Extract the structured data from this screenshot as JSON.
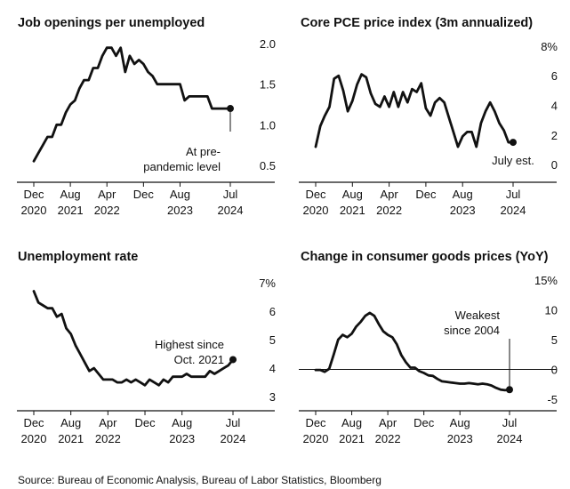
{
  "source": "Source: Bureau of Economic Analysis, Bureau of Labor Statistics, Bloomberg",
  "chart_data": [
    {
      "type": "line",
      "title": "Job openings per unemployed",
      "x_ticks": [
        {
          "top": "Dec",
          "bottom": "2020",
          "x": 0
        },
        {
          "top": "Aug",
          "bottom": "2021",
          "x": 8
        },
        {
          "top": "Apr",
          "bottom": "2022",
          "x": 16
        },
        {
          "top": "Dec",
          "bottom": "",
          "x": 24
        },
        {
          "top": "Aug",
          "bottom": "2023",
          "x": 32
        },
        {
          "top": "Jul",
          "bottom": "2024",
          "x": 43
        }
      ],
      "y_ticks": [
        "0.5",
        "1.0",
        "1.5",
        "2.0"
      ],
      "y_tick_values": [
        0.5,
        1.0,
        1.5,
        2.0
      ],
      "ylim": [
        0.4,
        2.1
      ],
      "x": [
        0,
        1,
        2,
        3,
        4,
        5,
        6,
        7,
        8,
        9,
        10,
        11,
        12,
        13,
        14,
        15,
        16,
        17,
        18,
        19,
        20,
        21,
        22,
        23,
        24,
        25,
        26,
        27,
        28,
        29,
        30,
        31,
        32,
        33,
        34,
        35,
        36,
        37,
        38,
        39,
        40,
        41,
        42,
        43
      ],
      "values": [
        0.55,
        0.65,
        0.75,
        0.85,
        0.85,
        1.0,
        1.0,
        1.15,
        1.25,
        1.3,
        1.45,
        1.55,
        1.55,
        1.7,
        1.7,
        1.85,
        1.95,
        1.95,
        1.85,
        1.95,
        1.65,
        1.85,
        1.75,
        1.8,
        1.75,
        1.65,
        1.6,
        1.5,
        1.5,
        1.5,
        1.5,
        1.5,
        1.5,
        1.3,
        1.35,
        1.35,
        1.35,
        1.35,
        1.35,
        1.2,
        1.2,
        1.2,
        1.2,
        1.2
      ],
      "annotation": {
        "lines": [
          "At pre-",
          "pandemic level"
        ],
        "x": 43,
        "y": 1.2
      }
    },
    {
      "type": "line",
      "title": "Core PCE price index (3m annualized)",
      "x_ticks": [
        {
          "top": "Dec",
          "bottom": "2020",
          "x": 0
        },
        {
          "top": "Aug",
          "bottom": "2021",
          "x": 8
        },
        {
          "top": "Apr",
          "bottom": "2022",
          "x": 16
        },
        {
          "top": "Dec",
          "bottom": "",
          "x": 24
        },
        {
          "top": "Aug",
          "bottom": "2023",
          "x": 32
        },
        {
          "top": "Jul",
          "bottom": "2024",
          "x": 43
        }
      ],
      "y_ticks": [
        "0",
        "2",
        "4",
        "6",
        "8%"
      ],
      "y_tick_values": [
        0,
        2,
        4,
        6,
        8
      ],
      "ylim": [
        -0.6,
        8.6
      ],
      "x": [
        0,
        1,
        2,
        3,
        4,
        5,
        6,
        7,
        8,
        9,
        10,
        11,
        12,
        13,
        14,
        15,
        16,
        17,
        18,
        19,
        20,
        21,
        22,
        23,
        24,
        25,
        26,
        27,
        28,
        29,
        30,
        31,
        32,
        33,
        34,
        35,
        36,
        37,
        38,
        39,
        40,
        41,
        42,
        43
      ],
      "values": [
        1.2,
        2.6,
        3.3,
        3.9,
        5.8,
        6.0,
        5.0,
        3.6,
        4.3,
        5.4,
        6.1,
        5.9,
        4.8,
        4.1,
        3.9,
        4.6,
        3.9,
        4.9,
        3.9,
        4.9,
        4.2,
        5.1,
        4.9,
        5.5,
        3.8,
        3.3,
        4.2,
        4.5,
        4.2,
        3.2,
        2.2,
        1.2,
        1.9,
        2.2,
        2.2,
        1.2,
        2.8,
        3.6,
        4.2,
        3.6,
        2.8,
        2.3,
        1.5,
        1.5
      ],
      "annotation": {
        "lines": [
          "July est."
        ],
        "x": 43,
        "y": 1.5
      }
    },
    {
      "type": "line",
      "title": "Unemployment rate",
      "x_ticks": [
        {
          "top": "Dec",
          "bottom": "2020",
          "x": 0
        },
        {
          "top": "Aug",
          "bottom": "2021",
          "x": 8
        },
        {
          "top": "Apr",
          "bottom": "2022",
          "x": 16
        },
        {
          "top": "Dec",
          "bottom": "",
          "x": 24
        },
        {
          "top": "Aug",
          "bottom": "2023",
          "x": 32
        },
        {
          "top": "Jul",
          "bottom": "2024",
          "x": 43
        }
      ],
      "y_ticks": [
        "3",
        "4",
        "5",
        "6",
        "7%"
      ],
      "y_tick_values": [
        3,
        4,
        5,
        6,
        7
      ],
      "ylim": [
        2.6,
        7.4
      ],
      "x": [
        0,
        1,
        2,
        3,
        4,
        5,
        6,
        7,
        8,
        9,
        10,
        11,
        12,
        13,
        14,
        15,
        16,
        17,
        18,
        19,
        20,
        21,
        22,
        23,
        24,
        25,
        26,
        27,
        28,
        29,
        30,
        31,
        32,
        33,
        34,
        35,
        36,
        37,
        38,
        39,
        40,
        41,
        42,
        43
      ],
      "values": [
        6.7,
        6.3,
        6.2,
        6.1,
        6.1,
        5.8,
        5.9,
        5.4,
        5.2,
        4.8,
        4.5,
        4.2,
        3.9,
        4.0,
        3.8,
        3.6,
        3.6,
        3.6,
        3.5,
        3.5,
        3.6,
        3.5,
        3.6,
        3.5,
        3.4,
        3.6,
        3.5,
        3.4,
        3.6,
        3.5,
        3.7,
        3.7,
        3.7,
        3.8,
        3.7,
        3.7,
        3.7,
        3.7,
        3.9,
        3.8,
        3.9,
        4.0,
        4.1,
        4.3
      ],
      "annotation": {
        "lines": [
          "Highest since",
          "Oct. 2021"
        ],
        "x": 43,
        "y": 4.3
      }
    },
    {
      "type": "line",
      "title": "Change in consumer goods prices (YoY)",
      "x_ticks": [
        {
          "top": "Dec",
          "bottom": "2020",
          "x": 0
        },
        {
          "top": "Aug",
          "bottom": "2021",
          "x": 8
        },
        {
          "top": "Apr",
          "bottom": "2022",
          "x": 16
        },
        {
          "top": "Dec",
          "bottom": "",
          "x": 24
        },
        {
          "top": "Aug",
          "bottom": "2023",
          "x": 32
        },
        {
          "top": "Jul",
          "bottom": "2024",
          "x": 43
        }
      ],
      "y_ticks": [
        "-5",
        "0",
        "5",
        "10",
        "15%"
      ],
      "y_tick_values": [
        -5,
        0,
        5,
        10,
        15
      ],
      "ylim": [
        -6.5,
        16.5
      ],
      "zero_line": 0,
      "x": [
        0,
        1,
        2,
        3,
        4,
        5,
        6,
        7,
        8,
        9,
        10,
        11,
        12,
        13,
        14,
        15,
        16,
        17,
        18,
        19,
        20,
        21,
        22,
        23,
        24,
        25,
        26,
        27,
        28,
        29,
        30,
        31,
        32,
        33,
        34,
        35,
        36,
        37,
        38,
        39,
        40,
        41,
        42,
        43
      ],
      "values": [
        -0.1,
        -0.1,
        -0.4,
        0.1,
        2.5,
        5.0,
        5.8,
        5.4,
        6.0,
        7.2,
        8.0,
        9.0,
        9.5,
        9.0,
        7.6,
        6.4,
        5.8,
        5.4,
        4.2,
        2.4,
        1.2,
        0.3,
        0.3,
        -0.3,
        -0.6,
        -1.0,
        -1.1,
        -1.6,
        -2.0,
        -2.1,
        -2.2,
        -2.3,
        -2.4,
        -2.4,
        -2.3,
        -2.4,
        -2.5,
        -2.4,
        -2.5,
        -2.7,
        -3.1,
        -3.4,
        -3.5,
        -3.4
      ],
      "annotation": {
        "lines": [
          "Weakest",
          "since 2004"
        ],
        "x": 43,
        "y": -3.4
      }
    }
  ]
}
